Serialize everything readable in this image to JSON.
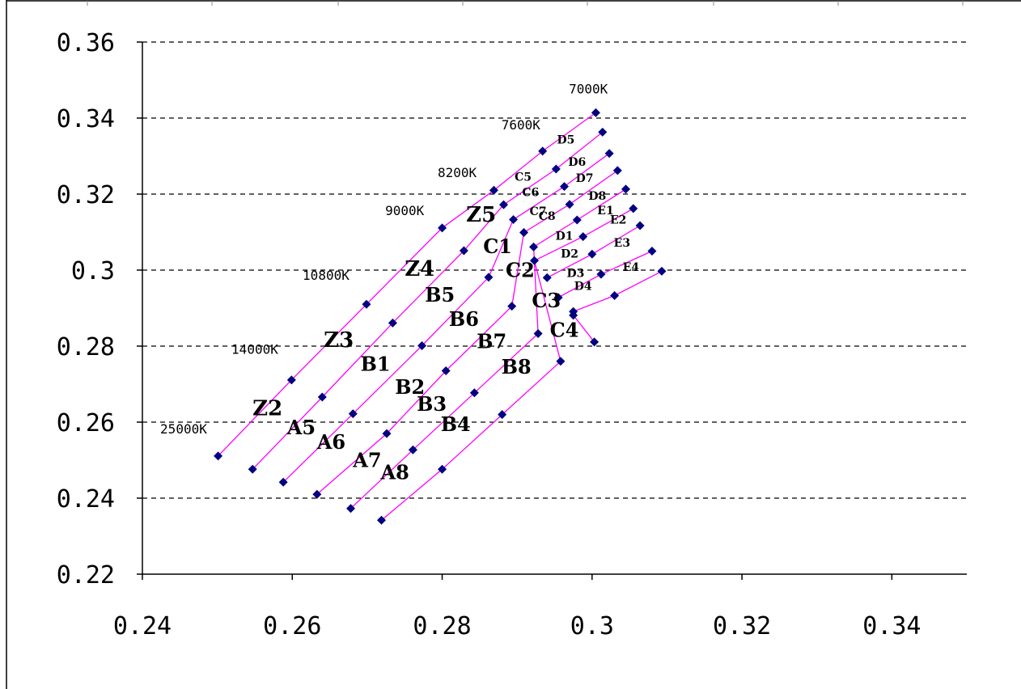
{
  "chart_data": {
    "type": "scatter",
    "title": "",
    "xlabel": "",
    "ylabel": "",
    "xlim": [
      0.24,
      0.35
    ],
    "ylim": [
      0.22,
      0.36
    ],
    "x_ticks": [
      "0.24",
      "0.26",
      "0.28",
      "0.3",
      "0.32",
      "0.34"
    ],
    "y_ticks": [
      "0.22",
      "0.24",
      "0.26",
      "0.28",
      "0.3",
      "0.32",
      "0.34",
      "0.36"
    ],
    "x_tick_values": [
      0.24,
      0.26,
      0.28,
      0.3,
      0.32,
      0.34
    ],
    "y_tick_values": [
      0.22,
      0.24,
      0.26,
      0.28,
      0.3,
      0.32,
      0.34,
      0.36
    ],
    "horizontal_grid": true,
    "grid_style": "dashed",
    "line_color": "#ff00ff",
    "marker_color": "#000080",
    "marker_shape": "diamond",
    "lines": [
      [
        [
          0.2501,
          0.2511
        ],
        [
          0.2599,
          0.2711
        ],
        [
          0.2699,
          0.291
        ],
        [
          0.28,
          0.3111
        ],
        [
          0.2869,
          0.321
        ],
        [
          0.2934,
          0.3313
        ],
        [
          0.3005,
          0.3414
        ]
      ],
      [
        [
          0.2547,
          0.2476
        ],
        [
          0.264,
          0.2666
        ],
        [
          0.2734,
          0.2861
        ],
        [
          0.2829,
          0.3051
        ],
        [
          0.2882,
          0.3172
        ],
        [
          0.2952,
          0.3266
        ],
        [
          0.3014,
          0.3363
        ]
      ],
      [
        [
          0.2588,
          0.2442
        ],
        [
          0.2681,
          0.2622
        ],
        [
          0.2773,
          0.2801
        ],
        [
          0.2862,
          0.2981
        ],
        [
          0.2895,
          0.3133
        ],
        [
          0.2963,
          0.322
        ],
        [
          0.3023,
          0.3307
        ]
      ],
      [
        [
          0.2633,
          0.241
        ],
        [
          0.2726,
          0.257
        ],
        [
          0.2805,
          0.2735
        ],
        [
          0.2893,
          0.2905
        ],
        [
          0.2909,
          0.3099
        ],
        [
          0.297,
          0.3173
        ],
        [
          0.3034,
          0.3262
        ]
      ],
      [
        [
          0.2678,
          0.2373
        ],
        [
          0.2761,
          0.2527
        ],
        [
          0.2843,
          0.2677
        ],
        [
          0.2928,
          0.2833
        ],
        [
          0.2922,
          0.3061
        ],
        [
          0.298,
          0.3132
        ],
        [
          0.3045,
          0.3213
        ]
      ],
      [
        [
          0.2719,
          0.2342
        ],
        [
          0.28,
          0.2476
        ],
        [
          0.288,
          0.262
        ],
        [
          0.2958,
          0.276
        ],
        [
          0.2923,
          0.3025
        ],
        [
          0.2988,
          0.3088
        ],
        [
          0.3055,
          0.3162
        ]
      ],
      [
        [
          0.294,
          0.298
        ],
        [
          0.3,
          0.3042
        ],
        [
          0.3064,
          0.3117
        ]
      ],
      [
        [
          0.2955,
          0.2928
        ],
        [
          0.3012,
          0.2989
        ],
        [
          0.308,
          0.305
        ]
      ],
      [
        [
          0.2975,
          0.2891
        ],
        [
          0.303,
          0.2933
        ],
        [
          0.3093,
          0.2997
        ]
      ],
      [
        [
          0.2975,
          0.2881
        ],
        [
          0.3003,
          0.2811
        ]
      ]
    ],
    "point_labels": [
      {
        "text": "7000K",
        "x": 0.2995,
        "y": 0.3465
      },
      {
        "text": "7600K",
        "x": 0.2905,
        "y": 0.337
      },
      {
        "text": "8200K",
        "x": 0.282,
        "y": 0.3245
      },
      {
        "text": "9000K",
        "x": 0.275,
        "y": 0.3145
      },
      {
        "text": "10800K",
        "x": 0.2645,
        "y": 0.2975
      },
      {
        "text": "14000K",
        "x": 0.255,
        "y": 0.278
      },
      {
        "text": "25000K",
        "x": 0.2455,
        "y": 0.257
      }
    ],
    "bins": [
      {
        "text": "Z2",
        "x": 0.2567,
        "y": 0.2618,
        "size": 26
      },
      {
        "text": "Z3",
        "x": 0.2662,
        "y": 0.2798,
        "size": 26
      },
      {
        "text": "Z4",
        "x": 0.277,
        "y": 0.2985,
        "size": 26
      },
      {
        "text": "Z5",
        "x": 0.2852,
        "y": 0.3128,
        "size": 26
      },
      {
        "text": "A5",
        "x": 0.2612,
        "y": 0.2568,
        "size": 24
      },
      {
        "text": "A6",
        "x": 0.2652,
        "y": 0.253,
        "size": 24
      },
      {
        "text": "A7",
        "x": 0.27,
        "y": 0.2482,
        "size": 24
      },
      {
        "text": "A8",
        "x": 0.2737,
        "y": 0.245,
        "size": 24
      },
      {
        "text": "B1",
        "x": 0.2711,
        "y": 0.2735,
        "size": 24
      },
      {
        "text": "B2",
        "x": 0.2757,
        "y": 0.2675,
        "size": 24
      },
      {
        "text": "B3",
        "x": 0.2786,
        "y": 0.263,
        "size": 24
      },
      {
        "text": "B4",
        "x": 0.2818,
        "y": 0.2577,
        "size": 24
      },
      {
        "text": "B5",
        "x": 0.2797,
        "y": 0.2917,
        "size": 24
      },
      {
        "text": "B6",
        "x": 0.2829,
        "y": 0.2853,
        "size": 24
      },
      {
        "text": "B7",
        "x": 0.2866,
        "y": 0.2795,
        "size": 24
      },
      {
        "text": "B8",
        "x": 0.2899,
        "y": 0.2728,
        "size": 24
      },
      {
        "text": "C1",
        "x": 0.2874,
        "y": 0.3045,
        "size": 24
      },
      {
        "text": "C2",
        "x": 0.2904,
        "y": 0.2982,
        "size": 24
      },
      {
        "text": "C3",
        "x": 0.2939,
        "y": 0.2902,
        "size": 24
      },
      {
        "text": "C4",
        "x": 0.2963,
        "y": 0.2824,
        "size": 24
      },
      {
        "text": "C5",
        "x": 0.2908,
        "y": 0.3235,
        "size": 14
      },
      {
        "text": "C6",
        "x": 0.2918,
        "y": 0.3195,
        "size": 14
      },
      {
        "text": "C7",
        "x": 0.2928,
        "y": 0.3145,
        "size": 14
      },
      {
        "text": "C8",
        "x": 0.294,
        "y": 0.3132,
        "size": 14
      },
      {
        "text": "D5",
        "x": 0.2965,
        "y": 0.3333,
        "size": 14
      },
      {
        "text": "D6",
        "x": 0.298,
        "y": 0.3275,
        "size": 14
      },
      {
        "text": "D7",
        "x": 0.299,
        "y": 0.3232,
        "size": 14
      },
      {
        "text": "D8",
        "x": 0.3007,
        "y": 0.3185,
        "size": 14
      },
      {
        "text": "D1",
        "x": 0.2963,
        "y": 0.308,
        "size": 14
      },
      {
        "text": "D2",
        "x": 0.297,
        "y": 0.3033,
        "size": 14
      },
      {
        "text": "D3",
        "x": 0.2978,
        "y": 0.2982,
        "size": 14
      },
      {
        "text": "D4",
        "x": 0.2988,
        "y": 0.2948,
        "size": 14
      },
      {
        "text": "E1",
        "x": 0.3018,
        "y": 0.3147,
        "size": 14
      },
      {
        "text": "E2",
        "x": 0.3035,
        "y": 0.3122,
        "size": 14
      },
      {
        "text": "E3",
        "x": 0.304,
        "y": 0.3062,
        "size": 14
      },
      {
        "text": "E4",
        "x": 0.3052,
        "y": 0.2998,
        "size": 14
      }
    ]
  }
}
